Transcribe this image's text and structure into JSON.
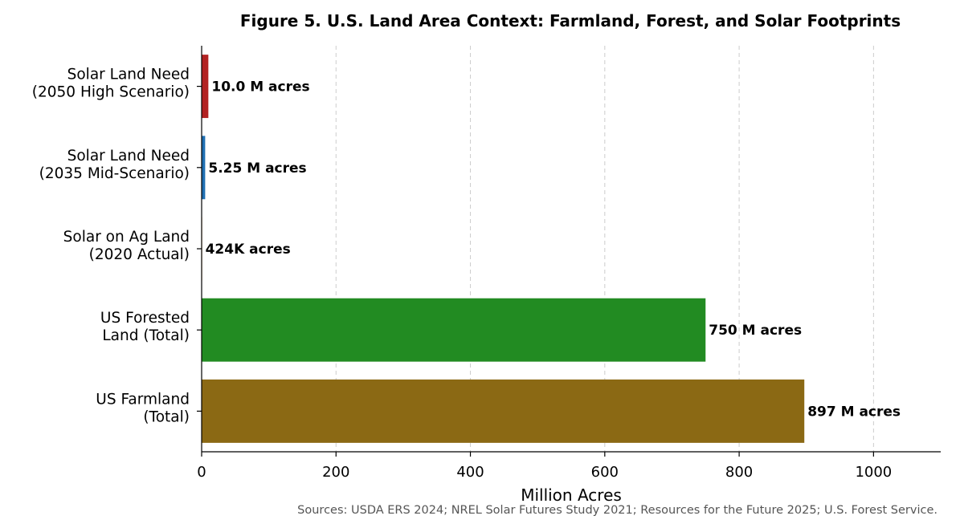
{
  "chart_data": {
    "type": "bar",
    "orientation": "horizontal",
    "title": "Figure 5. U.S. Land Area Context: Farmland, Forest, and Solar Footprints",
    "xlabel": "Million Acres",
    "ylabel": "",
    "xlim": [
      0,
      1100
    ],
    "xticks": [
      0,
      200,
      400,
      600,
      800,
      1000
    ],
    "grid": "x-dashed",
    "categories": [
      [
        "Solar Land Need",
        "(2050 High Scenario)"
      ],
      [
        "Solar Land Need",
        "(2035 Mid-Scenario)"
      ],
      [
        "Solar on Ag Land",
        "(2020 Actual)"
      ],
      [
        "US Forested",
        "Land (Total)"
      ],
      [
        "US Farmland",
        "(Total)"
      ]
    ],
    "values": [
      10.0,
      5.25,
      0.424,
      750,
      897
    ],
    "data_labels": [
      "10.0 M acres",
      "5.25 M acres",
      "424K acres",
      "750 M acres",
      "897 M acres"
    ],
    "colors": [
      "#b22222",
      "#1f6fb2",
      "#f5a623",
      "#228b22",
      "#8b6914"
    ],
    "source": "Sources: USDA ERS 2024; NREL Solar Futures Study 2021; Resources for the Future 2025; U.S. Forest Service."
  }
}
